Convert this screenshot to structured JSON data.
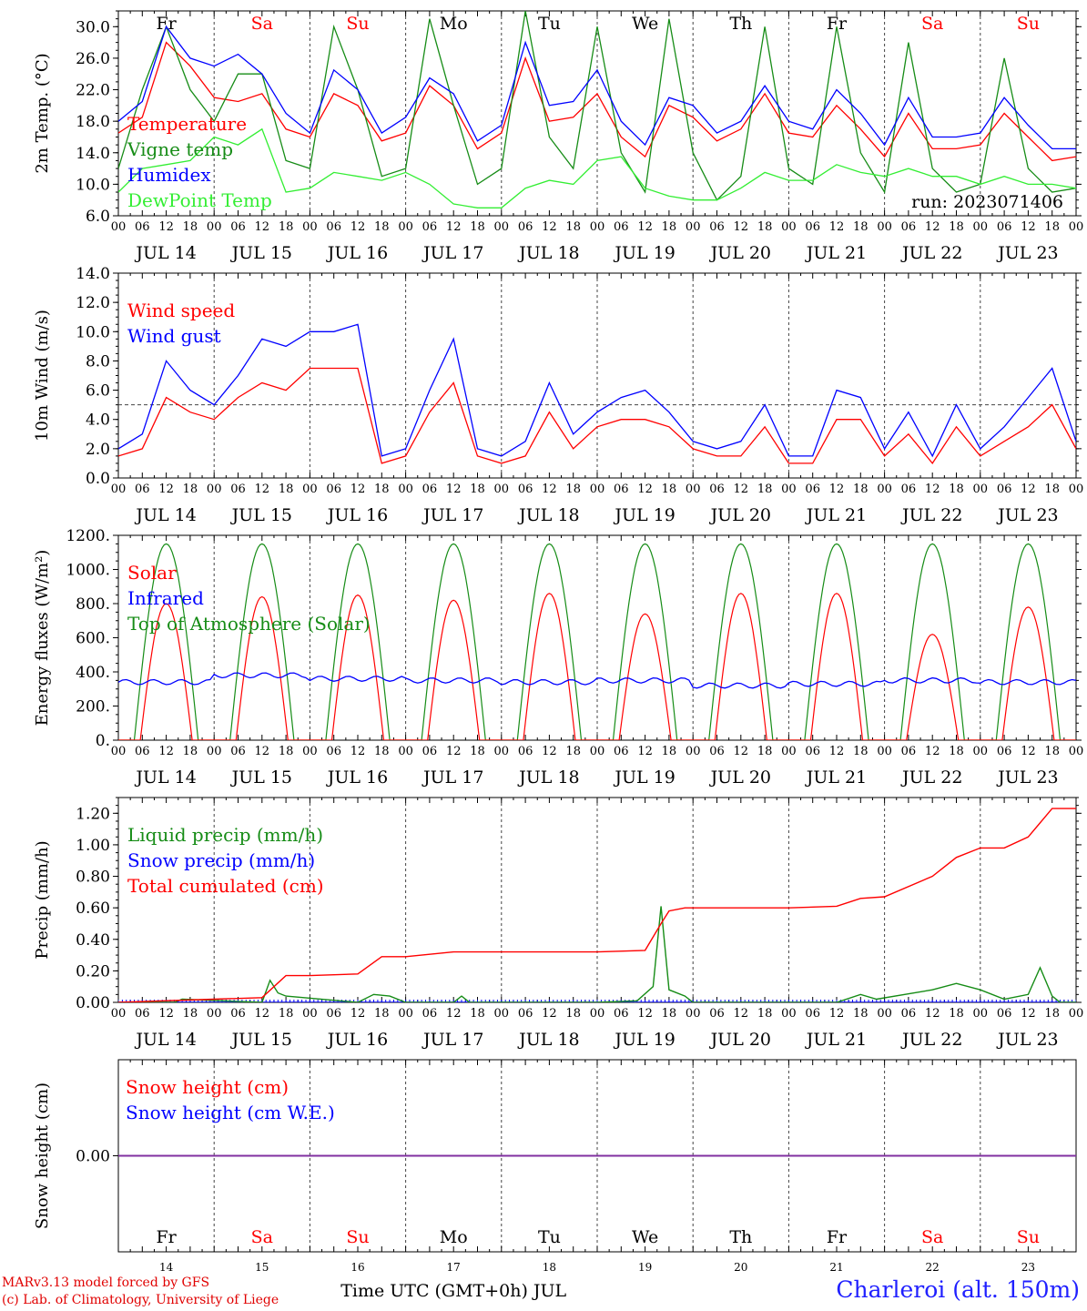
{
  "colors": {
    "red": "#ff0000",
    "darkgreen": "#168c16",
    "blue": "#0000ff",
    "lightgreen": "#33ee33",
    "purple": "#8030a0",
    "axis": "#000000"
  },
  "time_axis": {
    "hour_ticks": [
      "00",
      "06",
      "12",
      "18"
    ],
    "end_tick": "00",
    "dates": [
      "JUL 14",
      "JUL 15",
      "JUL 16",
      "JUL 17",
      "JUL 18",
      "JUL 19",
      "JUL 20",
      "JUL 21",
      "JUL 22",
      "JUL 23"
    ],
    "weekdays": [
      "Fr",
      "Sa",
      "Su",
      "Mo",
      "Tu",
      "We",
      "Th",
      "Fr",
      "Sa",
      "Su"
    ],
    "weekend": [
      false,
      true,
      true,
      false,
      false,
      false,
      false,
      false,
      true,
      true
    ],
    "day_numbers": [
      "14",
      "15",
      "16",
      "17",
      "18",
      "19",
      "20",
      "21",
      "22",
      "23"
    ],
    "xlabel": "Time UTC (GMT+0h) JUL"
  },
  "footer": {
    "model": "MARv3.13 model forced by GFS",
    "copyright": "(c) Lab. of Climatology, University of Liege",
    "station": "Charleroi (alt. 150m)"
  },
  "chart_data": [
    {
      "type": "line",
      "ylabel": "2m Temp. (°C)",
      "ylim": [
        6,
        32
      ],
      "yticks": [
        "6.0",
        "10.0",
        "14.0",
        "18.0",
        "22.0",
        "26.0",
        "30.0"
      ],
      "annotation": "run: 2023071406",
      "x_unit": "hours since JUL 14 00 UTC",
      "series": [
        {
          "name": "Temperature",
          "color": "red",
          "x": [
            0,
            6,
            12,
            18,
            24,
            30,
            36,
            42,
            48,
            54,
            60,
            66,
            72,
            78,
            84,
            90,
            96,
            102,
            108,
            114,
            120,
            126,
            132,
            138,
            144,
            150,
            156,
            162,
            168,
            174,
            180,
            186,
            192,
            198,
            204,
            210,
            216,
            222,
            228,
            234,
            240
          ],
          "values": [
            16.5,
            18.5,
            28.0,
            25.0,
            21.0,
            20.5,
            21.5,
            17.0,
            16.0,
            21.5,
            20.0,
            15.5,
            16.5,
            22.5,
            20.0,
            14.5,
            16.5,
            26.0,
            18.0,
            18.5,
            21.5,
            16.0,
            13.5,
            20.0,
            18.5,
            15.5,
            17.0,
            21.5,
            16.5,
            16.0,
            20.0,
            17.0,
            13.5,
            19.0,
            14.5,
            14.5,
            15.0,
            19.0,
            16.0,
            13.0,
            13.5
          ]
        },
        {
          "name": "Vigne temp",
          "color": "darkgreen",
          "x": [
            0,
            6,
            12,
            18,
            24,
            30,
            36,
            42,
            48,
            54,
            60,
            66,
            72,
            78,
            84,
            90,
            96,
            102,
            108,
            114,
            120,
            126,
            132,
            138,
            144,
            150,
            156,
            162,
            168,
            174,
            180,
            186,
            192,
            198,
            204,
            210,
            216,
            222,
            228,
            234,
            240
          ],
          "values": [
            12.0,
            22.0,
            30.0,
            22.0,
            18.0,
            24.0,
            24.0,
            13.0,
            12.0,
            30.0,
            22.0,
            11.0,
            12.0,
            31.0,
            20.0,
            10.0,
            12.0,
            32.0,
            16.0,
            12.0,
            30.0,
            14.0,
            9.0,
            31.0,
            14.0,
            8.0,
            11.0,
            30.0,
            12.0,
            10.0,
            30.0,
            14.0,
            9.0,
            28.0,
            12.0,
            9.0,
            10.0,
            26.0,
            12.0,
            9.0,
            9.5
          ]
        },
        {
          "name": "Humidex",
          "color": "blue",
          "x": [
            0,
            6,
            12,
            18,
            24,
            30,
            36,
            42,
            48,
            54,
            60,
            66,
            72,
            78,
            84,
            90,
            96,
            102,
            108,
            114,
            120,
            126,
            132,
            138,
            144,
            150,
            156,
            162,
            168,
            174,
            180,
            186,
            192,
            198,
            204,
            210,
            216,
            222,
            228,
            234,
            240
          ],
          "values": [
            18.0,
            20.5,
            30.0,
            26.0,
            25.0,
            26.5,
            24.0,
            19.0,
            16.5,
            24.5,
            22.0,
            16.5,
            18.5,
            23.5,
            21.5,
            15.5,
            17.5,
            28.0,
            20.0,
            20.5,
            24.5,
            18.0,
            15.0,
            21.0,
            20.0,
            16.5,
            18.0,
            22.5,
            18.0,
            17.0,
            22.0,
            19.0,
            15.0,
            21.0,
            16.0,
            16.0,
            16.5,
            21.0,
            17.5,
            14.5,
            14.5
          ]
        },
        {
          "name": "DewPoint Temp",
          "color": "lightgreen",
          "x": [
            0,
            6,
            12,
            18,
            24,
            30,
            36,
            42,
            48,
            54,
            60,
            66,
            72,
            78,
            84,
            90,
            96,
            102,
            108,
            114,
            120,
            126,
            132,
            138,
            144,
            150,
            156,
            162,
            168,
            174,
            180,
            186,
            192,
            198,
            204,
            210,
            216,
            222,
            228,
            234,
            240
          ],
          "values": [
            9.0,
            12.0,
            12.5,
            13.0,
            16.0,
            15.0,
            17.0,
            9.0,
            9.5,
            11.5,
            11.0,
            10.5,
            11.5,
            10.0,
            7.5,
            7.0,
            7.0,
            9.5,
            10.5,
            10.0,
            13.0,
            13.5,
            9.5,
            8.5,
            8.0,
            8.0,
            9.5,
            11.5,
            10.5,
            10.5,
            12.5,
            11.5,
            11.0,
            12.0,
            11.0,
            11.0,
            10.0,
            11.0,
            10.0,
            10.0,
            9.5
          ]
        }
      ],
      "legend": [
        "Temperature",
        "Vigne temp",
        "Humidex",
        "DewPoint Temp"
      ]
    },
    {
      "type": "line",
      "ylabel": "10m Wind (m/s)",
      "ylim": [
        0,
        14
      ],
      "yticks": [
        "0.0",
        "2.0",
        "4.0",
        "6.0",
        "8.0",
        "10.0",
        "12.0",
        "14.0"
      ],
      "hline": 5,
      "x_unit": "hours since JUL 14 00 UTC",
      "series": [
        {
          "name": "Wind speed",
          "color": "red",
          "x": [
            0,
            6,
            12,
            18,
            24,
            30,
            36,
            42,
            48,
            54,
            60,
            66,
            72,
            78,
            84,
            90,
            96,
            102,
            108,
            114,
            120,
            126,
            132,
            138,
            144,
            150,
            156,
            162,
            168,
            174,
            180,
            186,
            192,
            198,
            204,
            210,
            216,
            222,
            228,
            234,
            240
          ],
          "values": [
            1.5,
            2.0,
            5.5,
            4.5,
            4.0,
            5.5,
            6.5,
            6.0,
            7.5,
            7.5,
            7.5,
            1.0,
            1.5,
            4.5,
            6.5,
            1.5,
            1.0,
            1.5,
            4.5,
            2.0,
            3.5,
            4.0,
            4.0,
            3.5,
            2.0,
            1.5,
            1.5,
            3.5,
            1.0,
            1.0,
            4.0,
            4.0,
            1.5,
            3.0,
            1.0,
            3.5,
            1.5,
            2.5,
            3.5,
            5.0,
            2.0
          ]
        },
        {
          "name": "Wind gust",
          "color": "blue",
          "x": [
            0,
            6,
            12,
            18,
            24,
            30,
            36,
            42,
            48,
            54,
            60,
            66,
            72,
            78,
            84,
            90,
            96,
            102,
            108,
            114,
            120,
            126,
            132,
            138,
            144,
            150,
            156,
            162,
            168,
            174,
            180,
            186,
            192,
            198,
            204,
            210,
            216,
            222,
            228,
            234,
            240
          ],
          "values": [
            2.0,
            3.0,
            8.0,
            6.0,
            5.0,
            7.0,
            9.5,
            9.0,
            10.0,
            10.0,
            10.5,
            1.5,
            2.0,
            6.0,
            9.5,
            2.0,
            1.5,
            2.5,
            6.5,
            3.0,
            4.5,
            5.5,
            6.0,
            4.5,
            2.5,
            2.0,
            2.5,
            5.0,
            1.5,
            1.5,
            6.0,
            5.5,
            2.0,
            4.5,
            1.5,
            5.0,
            2.0,
            3.5,
            5.5,
            7.5,
            2.5
          ]
        }
      ],
      "legend": [
        "Wind speed",
        "Wind gust"
      ]
    },
    {
      "type": "line",
      "ylabel": "Energy fluxes (W/m²)",
      "ylim": [
        0,
        1200
      ],
      "yticks": [
        "0.",
        "200.",
        "400.",
        "600.",
        "800.",
        "1000.",
        "1200."
      ],
      "daily_peaks_solar": [
        800,
        840,
        850,
        820,
        860,
        740,
        860,
        860,
        620,
        780
      ],
      "toa_peak": 1150,
      "infrared_mean": [
        340,
        380,
        360,
        350,
        340,
        350,
        320,
        330,
        350,
        340
      ],
      "legend": [
        "Solar",
        "Infrared",
        "Top of Atmosphere (Solar)"
      ],
      "series_colors": [
        "red",
        "blue",
        "darkgreen"
      ]
    },
    {
      "type": "line",
      "ylabel": "Precip (mm/h)",
      "ylim": [
        0,
        1.3
      ],
      "yticks": [
        "0.00",
        "0.20",
        "0.40",
        "0.60",
        "0.80",
        "1.00",
        "1.20"
      ],
      "x_unit": "hours since JUL 14 00 UTC",
      "series": [
        {
          "name": "Total cumulated (cm)",
          "color": "red",
          "x": [
            0,
            24,
            36,
            42,
            48,
            60,
            66,
            72,
            84,
            90,
            96,
            120,
            132,
            136,
            138,
            142,
            168,
            180,
            186,
            192,
            204,
            210,
            216,
            222,
            228,
            234,
            240
          ],
          "values": [
            0.0,
            0.02,
            0.03,
            0.17,
            0.17,
            0.18,
            0.29,
            0.29,
            0.32,
            0.32,
            0.32,
            0.32,
            0.33,
            0.5,
            0.58,
            0.6,
            0.6,
            0.61,
            0.66,
            0.67,
            0.8,
            0.92,
            0.98,
            0.98,
            1.05,
            1.23,
            1.23
          ]
        },
        {
          "name": "Liquid precip (mm/h)",
          "color": "darkgreen",
          "x": [
            0,
            14,
            16,
            36,
            38,
            40,
            42,
            60,
            64,
            68,
            72,
            84,
            86,
            88,
            120,
            130,
            134,
            136,
            138,
            142,
            144,
            180,
            186,
            190,
            204,
            210,
            216,
            222,
            228,
            231,
            234,
            236,
            240
          ],
          "values": [
            0,
            0,
            0.02,
            0,
            0.14,
            0.06,
            0.04,
            0,
            0.05,
            0.04,
            0,
            0,
            0.04,
            0,
            0,
            0.01,
            0.1,
            0.61,
            0.08,
            0.04,
            0,
            0,
            0.05,
            0.02,
            0.08,
            0.12,
            0.08,
            0.02,
            0.05,
            0.22,
            0.04,
            0,
            0
          ]
        },
        {
          "name": "Snow precip (mm/h)",
          "color": "blue",
          "x": [
            0,
            240
          ],
          "values": [
            0,
            0
          ]
        }
      ],
      "legend": [
        "Liquid precip (mm/h)",
        "Snow precip (mm/h)",
        "Total cumulated (cm)"
      ]
    },
    {
      "type": "line",
      "ylabel": "Snow height (cm)",
      "yticks": [
        "0.00"
      ],
      "series": [
        {
          "name": "Snow height (cm)",
          "color": "red",
          "x": [
            0,
            240
          ],
          "values": [
            0,
            0
          ]
        },
        {
          "name": "Snow height (cm W.E.)",
          "color": "blue",
          "x": [
            0,
            240
          ],
          "values": [
            0,
            0
          ]
        }
      ],
      "legend": [
        "Snow height (cm)",
        "Snow height (cm W.E.)"
      ]
    }
  ]
}
